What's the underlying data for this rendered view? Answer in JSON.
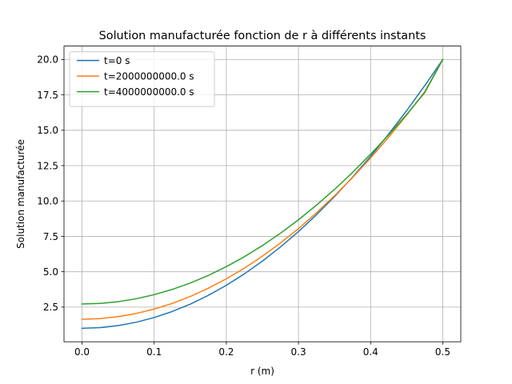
{
  "chart_data": {
    "type": "line",
    "title": "Solution manufacturée fonction de r à différents instants",
    "xlabel": "r (m)",
    "ylabel": "Solution manufacturée",
    "xlim": [
      -0.025,
      0.525
    ],
    "ylim": [
      0.05,
      20.95
    ],
    "xticks": [
      {
        "value": 0.0,
        "label": "0.0"
      },
      {
        "value": 0.1,
        "label": "0.1"
      },
      {
        "value": 0.2,
        "label": "0.2"
      },
      {
        "value": 0.3,
        "label": "0.3"
      },
      {
        "value": 0.4,
        "label": "0.4"
      },
      {
        "value": 0.5,
        "label": "0.5"
      }
    ],
    "yticks": [
      {
        "value": 2.5,
        "label": "2.5"
      },
      {
        "value": 5.0,
        "label": "5.0"
      },
      {
        "value": 7.5,
        "label": "7.5"
      },
      {
        "value": 10.0,
        "label": "10.0"
      },
      {
        "value": 12.5,
        "label": "12.5"
      },
      {
        "value": 15.0,
        "label": "15.0"
      },
      {
        "value": 17.5,
        "label": "17.5"
      },
      {
        "value": 20.0,
        "label": "20.0"
      }
    ],
    "grid": true,
    "legend_position": "top-left",
    "x": [
      0.0,
      0.025,
      0.05,
      0.075,
      0.1,
      0.125,
      0.15,
      0.175,
      0.2,
      0.225,
      0.25,
      0.275,
      0.3,
      0.325,
      0.35,
      0.375,
      0.4,
      0.425,
      0.45,
      0.475,
      0.5
    ],
    "series": [
      {
        "name": "t=0 s",
        "color": "#1f77b4",
        "values": [
          1.0,
          1.05,
          1.19,
          1.43,
          1.76,
          2.19,
          2.71,
          3.33,
          4.04,
          4.85,
          5.75,
          6.75,
          7.84,
          9.03,
          10.31,
          11.69,
          13.16,
          14.73,
          16.39,
          18.15,
          20.0
        ]
      },
      {
        "name": "t=2000000000.0 s",
        "color": "#ff7f0e",
        "values": [
          1.64,
          1.69,
          1.82,
          2.05,
          2.36,
          2.76,
          3.25,
          3.83,
          4.5,
          5.25,
          6.1,
          7.03,
          8.05,
          9.17,
          10.37,
          11.66,
          13.04,
          14.51,
          16.07,
          17.73,
          20.0
        ]
      },
      {
        "name": "t=4000000000.0 s",
        "color": "#2ca02c",
        "values": [
          2.72,
          2.76,
          2.88,
          3.09,
          3.38,
          3.75,
          4.2,
          4.74,
          5.36,
          6.06,
          6.85,
          7.72,
          8.67,
          9.71,
          10.82,
          12.02,
          13.31,
          14.67,
          16.12,
          17.66,
          20.0
        ]
      }
    ]
  }
}
